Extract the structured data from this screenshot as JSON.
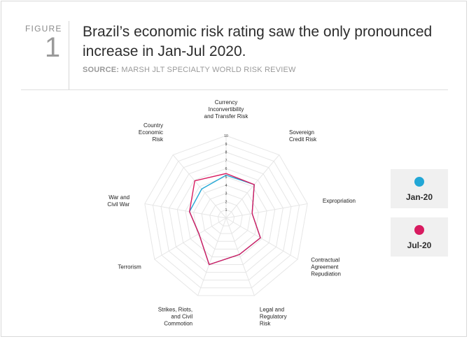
{
  "figure": {
    "label": "FIGURE",
    "number": "1",
    "title_line1": "Brazil’s economic risk rating saw the only pronounced",
    "title_line2": "increase in Jan-Jul 2020.",
    "source_label": "SOURCE:",
    "source_text": " MARSH JLT SPECIALTY WORLD RISK REVIEW"
  },
  "colors": {
    "jan": "#22a7d6",
    "jul": "#d81b60",
    "grid": "#e6e6e6"
  },
  "chart_data": {
    "type": "radar",
    "title": "",
    "axes": [
      [
        "Currency",
        "Inconvertibility",
        "and Transfer Risk"
      ],
      [
        "Sovereign",
        "Credit Risk"
      ],
      [
        "Expropriation"
      ],
      [
        "Contractual",
        "Agreement",
        "Repudiation"
      ],
      [
        "Legal and",
        "Regulatory",
        "Risk"
      ],
      [
        "Strikes, Riots,",
        "and Civil",
        "Commotion"
      ],
      [
        "Terrorism"
      ],
      [
        "War and",
        "Civil War"
      ],
      [
        "Country",
        "Economic",
        "Risk"
      ]
    ],
    "ticks": [
      "1",
      "2",
      "3",
      "4",
      "5",
      "6",
      "7",
      "8",
      "9",
      "10"
    ],
    "range": [
      0,
      10
    ],
    "series": [
      {
        "name": "Jan-20",
        "values": [
          5.2,
          5.3,
          3.2,
          4.8,
          4.7,
          6.0,
          3.8,
          4.5,
          4.6
        ]
      },
      {
        "name": "Jul-20",
        "values": [
          5.4,
          5.3,
          3.2,
          4.8,
          4.7,
          6.0,
          3.8,
          4.5,
          5.9
        ]
      }
    ],
    "legend": [
      {
        "label": "Jan-20"
      },
      {
        "label": "Jul-20"
      }
    ],
    "legend_position": "right"
  }
}
